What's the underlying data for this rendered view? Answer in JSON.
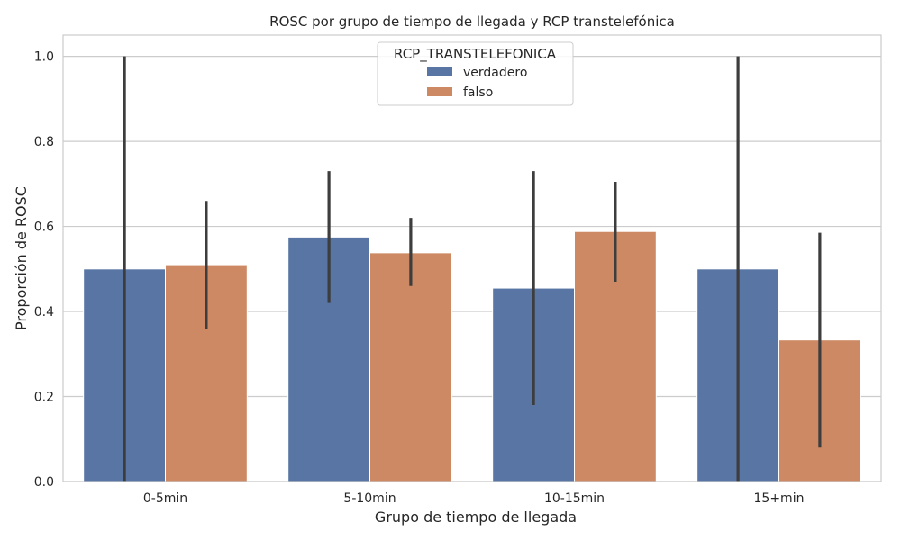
{
  "chart_data": {
    "type": "bar",
    "title": "ROSC por grupo de tiempo de llegada y RCP transtelefónica",
    "xlabel": "Grupo de tiempo de llegada",
    "ylabel": "Proporción de ROSC",
    "categories": [
      "0-5min",
      "5-10min",
      "10-15min",
      "15+min"
    ],
    "ylim": [
      0,
      1.05
    ],
    "yticks": [
      0.0,
      0.2,
      0.4,
      0.6,
      0.8,
      1.0
    ],
    "ytick_labels": [
      "0.0",
      "0.2",
      "0.4",
      "0.6",
      "0.8",
      "1.0"
    ],
    "grid": "horizontal",
    "legend": {
      "title": "RCP_TRANSTELEFONICA",
      "position": "top-center"
    },
    "series": [
      {
        "name": "verdadero",
        "color": "#5875a4",
        "values": [
          0.5,
          0.575,
          0.455,
          0.5
        ],
        "err_low": [
          0.0,
          0.42,
          0.18,
          0.0
        ],
        "err_high": [
          1.0,
          0.73,
          0.73,
          1.0
        ]
      },
      {
        "name": "falso",
        "color": "#cc8963",
        "values": [
          0.51,
          0.538,
          0.588,
          0.333
        ],
        "err_low": [
          0.36,
          0.46,
          0.47,
          0.08
        ],
        "err_high": [
          0.66,
          0.62,
          0.705,
          0.585
        ]
      }
    ]
  }
}
